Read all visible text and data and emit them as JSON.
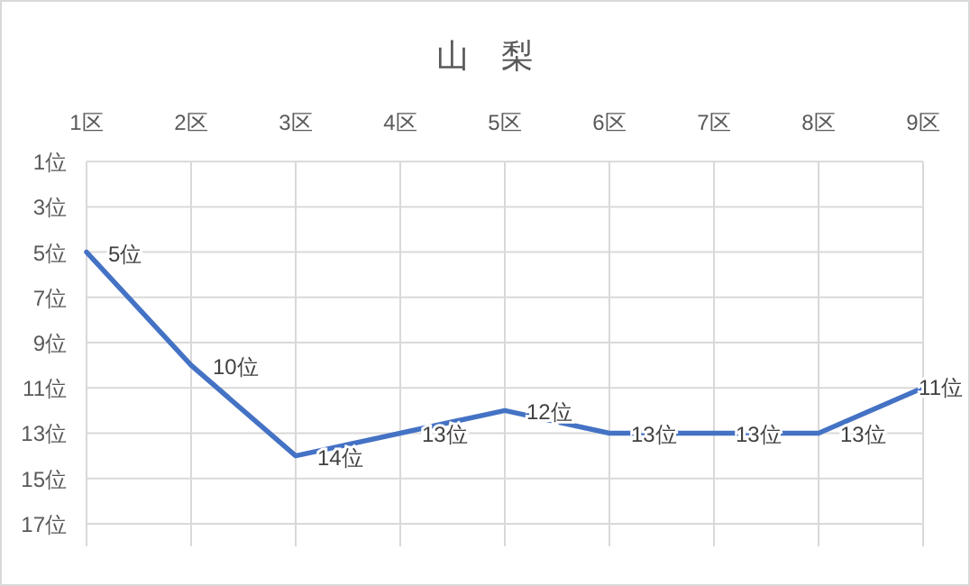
{
  "chart_data": {
    "type": "line",
    "title": "山　梨",
    "categories": [
      "1区",
      "2区",
      "3区",
      "4区",
      "5区",
      "6区",
      "7区",
      "8区",
      "9区"
    ],
    "series": [
      {
        "color": "#4472c4",
        "values": [
          5,
          10,
          14,
          13,
          12,
          13,
          13,
          13,
          11
        ],
        "value_labels": [
          "5位",
          "10位",
          "14位",
          "13位",
          "12位",
          "13位",
          "13位",
          "13位",
          "11位"
        ]
      }
    ],
    "ylim": [
      18,
      1
    ],
    "yticks": [
      {
        "value": 1,
        "label": "1位"
      },
      {
        "value": 3,
        "label": "3位"
      },
      {
        "value": 5,
        "label": "5位"
      },
      {
        "value": 7,
        "label": "7位"
      },
      {
        "value": 9,
        "label": "9位"
      },
      {
        "value": 11,
        "label": "11位"
      },
      {
        "value": 13,
        "label": "13位"
      },
      {
        "value": 15,
        "label": "15位"
      },
      {
        "value": 17,
        "label": "17位"
      }
    ],
    "grid": true
  }
}
